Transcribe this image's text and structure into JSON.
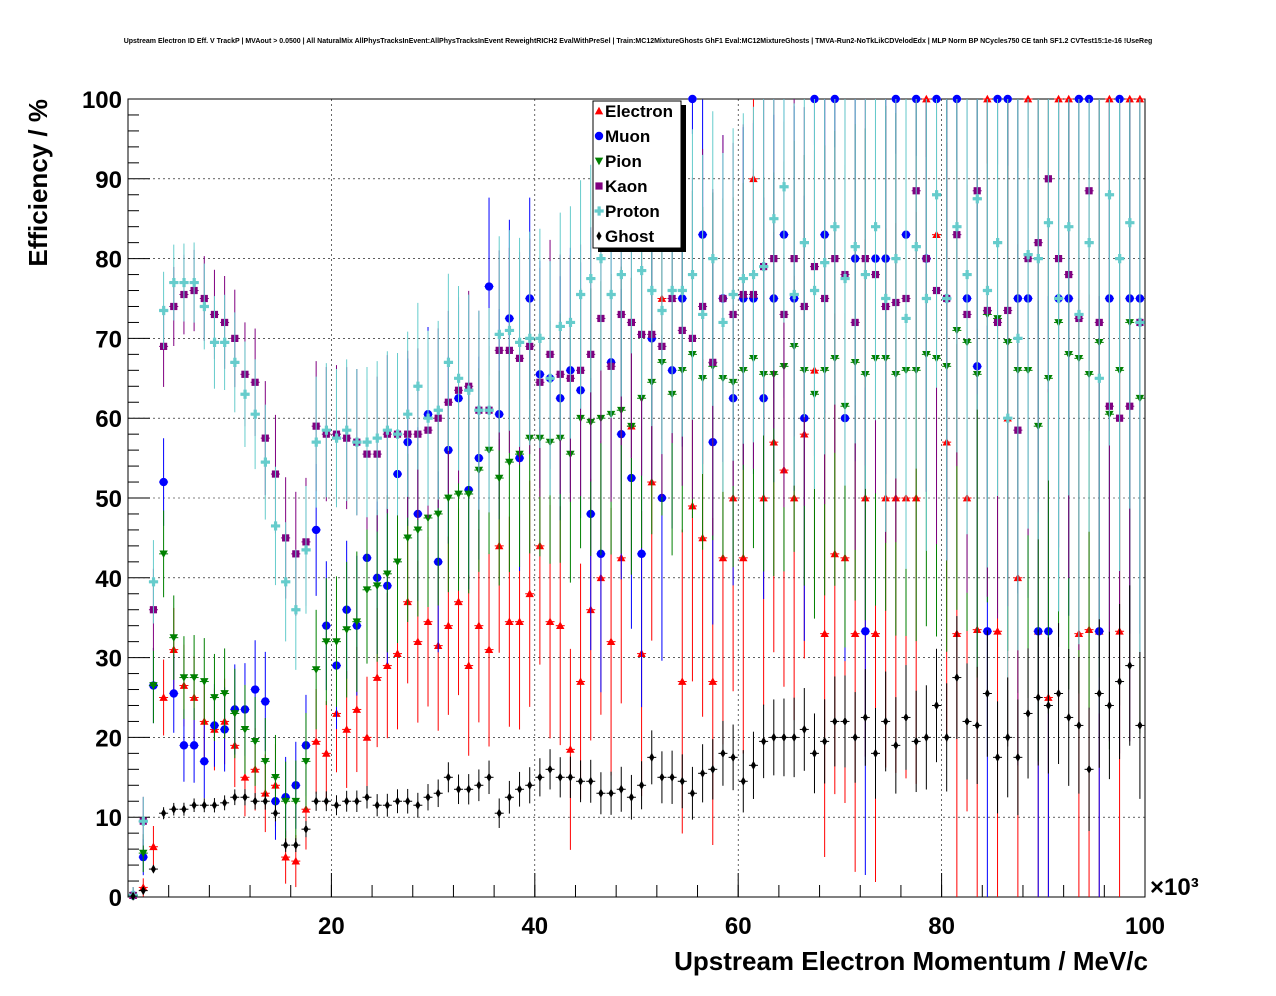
{
  "chart_data": {
    "type": "scatter",
    "title": "Upstream Electron ID Eff. V TrackP | MVAout > 0.0500 | All NaturalMix AllPhysTracksInEvent:AllPhysTracksInEvent ReweightRICH2 EvalWithPreSel | Train:MC12MixtureGhosts GhF1 Eval:MC12MixtureGhosts | TMVA-Run2-NoTkLikCDVelodEdx | MLP Norm BP NCycles750 CE tanh SF1.2 CVTest15:1e-16 !UseReg",
    "xlabel": "Upstream Electron Momentum / MeV/c",
    "ylabel": "Efficiency / %",
    "x_multiplier_label": "×10³",
    "xlim": [
      0,
      100
    ],
    "ylim": [
      0,
      100
    ],
    "x_ticks": [
      20,
      40,
      60,
      80,
      100
    ],
    "y_ticks": [
      0,
      10,
      20,
      30,
      40,
      50,
      60,
      70,
      80,
      90,
      100
    ],
    "grid": true,
    "legend_position": "top-center",
    "x": [
      0.5,
      1.5,
      2.5,
      3.5,
      4.5,
      5.5,
      6.5,
      7.5,
      8.5,
      9.5,
      10.5,
      11.5,
      12.5,
      13.5,
      14.5,
      15.5,
      16.5,
      17.5,
      18.5,
      19.5,
      20.5,
      21.5,
      22.5,
      23.5,
      24.5,
      25.5,
      26.5,
      27.5,
      28.5,
      29.5,
      30.5,
      31.5,
      32.5,
      33.5,
      34.5,
      35.5,
      36.5,
      37.5,
      38.5,
      39.5,
      40.5,
      41.5,
      42.5,
      43.5,
      44.5,
      45.5,
      46.5,
      47.5,
      48.5,
      49.5,
      50.5,
      51.5,
      52.5,
      53.5,
      54.5,
      55.5,
      56.5,
      57.5,
      58.5,
      59.5,
      60.5,
      61.5,
      62.5,
      63.5,
      64.5,
      65.5,
      66.5,
      67.5,
      68.5,
      69.5,
      70.5,
      71.5,
      72.5,
      73.5,
      74.5,
      75.5,
      76.5,
      77.5,
      78.5,
      79.5,
      80.5,
      81.5,
      82.5,
      83.5,
      84.5,
      85.5,
      86.5,
      87.5,
      88.5,
      89.5,
      90.5,
      91.5,
      92.5,
      93.5,
      94.5,
      95.5,
      96.5,
      97.5,
      98.5,
      99.5
    ],
    "series": [
      {
        "name": "Electron",
        "color": "#ff0000",
        "marker": "triangle-up",
        "values": [
          0.2,
          1.2,
          6.3,
          25.0,
          31.0,
          26.5,
          25.0,
          22.0,
          21.0,
          22.0,
          19.0,
          15.0,
          16.0,
          13.0,
          14.0,
          5.0,
          4.5,
          11.0,
          19.5,
          18.0,
          23.0,
          21.0,
          23.5,
          20.0,
          27.5,
          29.0,
          30.5,
          37.0,
          32.0,
          34.5,
          31.5,
          34.0,
          37.0,
          29.0,
          34.0,
          31.0,
          44.0,
          34.5,
          34.5,
          38.0,
          44.0,
          34.5,
          34.0,
          18.5,
          27.0,
          36.0,
          40.0,
          32.0,
          42.5,
          59.0,
          30.5,
          52.0,
          75.0,
          75.0,
          27.0,
          49.0,
          45.0,
          27.0,
          42.5,
          50.0,
          42.5,
          90.0,
          50.0,
          57.0,
          53.5,
          50.0,
          58.0,
          66.0,
          33.0,
          43.0,
          42.5,
          33.0,
          50.0,
          33.0,
          50.0,
          50.0,
          50.0,
          50.0,
          100.0,
          83.0,
          57.0,
          33.0,
          50.0,
          33.5,
          100.0,
          33.3,
          60.0,
          40.0,
          100.0,
          33.3,
          25.0,
          100.0,
          100.0,
          33.0,
          33.5,
          33.3,
          100.0,
          33.3,
          100.0,
          100.0
        ]
      },
      {
        "name": "Muon",
        "color": "#0000ff",
        "marker": "circle",
        "values": [
          0.2,
          5.0,
          26.5,
          52.0,
          25.5,
          19.0,
          19.0,
          17.0,
          21.5,
          21.0,
          23.5,
          23.5,
          26.0,
          24.5,
          12.0,
          12.5,
          14.0,
          19.0,
          46.0,
          34.0,
          29.0,
          36.0,
          34.0,
          42.5,
          40.0,
          39.0,
          53.0,
          57.0,
          48.0,
          60.5,
          42.0,
          56.0,
          62.5,
          51.0,
          55.0,
          76.5,
          60.5,
          72.5,
          55.0,
          75.0,
          65.5,
          65.0,
          62.5,
          66.0,
          63.5,
          48.0,
          43.0,
          67.0,
          58.0,
          52.5,
          43.0,
          70.0,
          50.0,
          66.0,
          75.0,
          100.0,
          83.0,
          57.0,
          75.0,
          62.5,
          75.0,
          75.0,
          62.5,
          75.0,
          83.0,
          75.0,
          60.0,
          100.0,
          83.0,
          100.0,
          60.0,
          80.0,
          33.3,
          80.0,
          80.0,
          100.0,
          83.0,
          100.0,
          80.0,
          100.0,
          75.0,
          100.0,
          75.0,
          66.5,
          33.3,
          100.0,
          100.0,
          75.0,
          75.0,
          33.3,
          33.3,
          75.0,
          75.0,
          100.0,
          100.0,
          33.3,
          75.0,
          100.0,
          75.0,
          75.0
        ]
      },
      {
        "name": "Pion",
        "color": "#008000",
        "marker": "triangle-down",
        "values": [
          0.2,
          5.5,
          26.5,
          43.0,
          32.5,
          27.5,
          27.5,
          27.0,
          25.0,
          25.5,
          23.0,
          21.0,
          19.5,
          17.0,
          15.0,
          12.0,
          12.0,
          17.0,
          28.5,
          32.0,
          32.0,
          33.5,
          34.5,
          38.5,
          39.0,
          40.5,
          42.0,
          45.0,
          46.0,
          47.5,
          48.0,
          50.0,
          50.5,
          50.5,
          53.5,
          56.0,
          52.5,
          54.5,
          55.5,
          57.5,
          57.5,
          57.0,
          57.5,
          55.5,
          60.0,
          59.5,
          60.0,
          60.5,
          61.0,
          59.0,
          62.5,
          64.5,
          67.0,
          63.0,
          66.0,
          68.0,
          65.0,
          66.5,
          65.0,
          64.5,
          66.0,
          67.5,
          65.5,
          65.5,
          66.5,
          69.0,
          66.0,
          63.0,
          66.0,
          67.5,
          61.5,
          67.0,
          65.5,
          67.5,
          67.5,
          65.5,
          66.0,
          66.0,
          68.0,
          67.5,
          66.5,
          71.0,
          69.5,
          65.5,
          73.0,
          72.5,
          69.5,
          66.0,
          66.0,
          59.0,
          65.0,
          72.0,
          68.0,
          67.5,
          65.5,
          69.5,
          60.5,
          66.0,
          72.0,
          62.5
        ]
      },
      {
        "name": "Kaon",
        "color": "#800080",
        "marker": "square",
        "values": [
          0.2,
          9.5,
          36.0,
          69.0,
          74.0,
          75.5,
          76.0,
          75.0,
          73.0,
          72.0,
          70.0,
          65.5,
          64.5,
          57.5,
          53.0,
          45.0,
          43.0,
          44.5,
          59.0,
          58.0,
          58.0,
          57.5,
          57.0,
          55.5,
          55.5,
          58.0,
          58.0,
          58.0,
          58.0,
          58.5,
          60.0,
          62.0,
          63.5,
          64.0,
          61.0,
          61.0,
          68.5,
          68.5,
          67.5,
          69.0,
          64.5,
          68.0,
          65.5,
          65.0,
          66.0,
          68.0,
          72.5,
          66.5,
          73.0,
          72.0,
          70.5,
          70.5,
          69.0,
          75.0,
          71.0,
          70.0,
          74.0,
          67.0,
          75.0,
          73.0,
          75.5,
          75.5,
          79.0,
          80.0,
          73.0,
          80.0,
          74.0,
          79.0,
          75.0,
          80.0,
          78.0,
          72.0,
          80.0,
          78.0,
          74.0,
          74.5,
          75.0,
          88.5,
          80.0,
          76.0,
          75.0,
          83.0,
          73.0,
          88.5,
          73.5,
          72.0,
          73.5,
          58.5,
          80.0,
          82.0,
          90.0,
          80.0,
          78.0,
          72.5,
          88.5,
          72.0,
          61.5,
          60.0,
          61.5,
          72.0
        ]
      },
      {
        "name": "Proton",
        "color": "#66cccc",
        "marker": "cross",
        "values": [
          0.2,
          9.5,
          39.5,
          73.5,
          77.0,
          77.0,
          77.0,
          74.0,
          69.5,
          69.5,
          67.0,
          63.0,
          60.5,
          54.5,
          46.5,
          39.5,
          36.0,
          43.5,
          57.0,
          58.5,
          57.5,
          58.5,
          57.0,
          57.0,
          57.5,
          58.5,
          58.0,
          60.5,
          64.0,
          60.0,
          61.0,
          67.0,
          65.0,
          63.5,
          61.0,
          61.0,
          70.5,
          71.0,
          69.5,
          70.0,
          70.0,
          65.0,
          71.5,
          72.0,
          75.5,
          77.5,
          80.0,
          75.5,
          78.0,
          82.5,
          78.5,
          76.0,
          73.5,
          76.0,
          76.0,
          78.0,
          73.0,
          80.0,
          72.0,
          75.5,
          77.5,
          78.0,
          79.0,
          85.0,
          89.0,
          75.5,
          82.0,
          76.0,
          79.5,
          84.0,
          77.5,
          81.5,
          78.0,
          84.0,
          75.0,
          80.0,
          72.5,
          81.5,
          75.0,
          88.0,
          75.0,
          84.0,
          78.0,
          87.5,
          76.0,
          82.0,
          60.0,
          70.0,
          80.5,
          80.0,
          84.5,
          75.0,
          84.0,
          73.0,
          82.0,
          65.0,
          88.0,
          80.0,
          84.5,
          72.0
        ]
      },
      {
        "name": "Ghost",
        "color": "#000000",
        "marker": "diamond",
        "values": [
          0.1,
          0.8,
          3.5,
          10.5,
          11.0,
          11.0,
          11.5,
          11.5,
          11.5,
          11.8,
          12.5,
          12.5,
          12.0,
          12.0,
          10.5,
          6.5,
          6.5,
          8.5,
          12.0,
          12.0,
          11.5,
          12.0,
          12.0,
          12.5,
          11.5,
          11.5,
          12.0,
          12.0,
          11.5,
          12.5,
          13.0,
          15.0,
          13.5,
          13.5,
          14.0,
          15.0,
          10.5,
          12.5,
          13.5,
          14.0,
          15.0,
          16.0,
          15.0,
          15.0,
          14.5,
          14.5,
          13.0,
          13.0,
          13.5,
          12.5,
          14.0,
          17.5,
          15.0,
          15.0,
          14.5,
          13.0,
          15.5,
          16.0,
          18.0,
          17.5,
          14.5,
          16.5,
          19.5,
          20.0,
          20.0,
          20.0,
          21.0,
          18.0,
          19.5,
          22.0,
          22.0,
          20.0,
          22.5,
          18.0,
          22.0,
          19.0,
          22.5,
          19.5,
          20.0,
          24.0,
          20.0,
          27.5,
          22.0,
          21.5,
          25.5,
          17.5,
          20.0,
          17.5,
          23.0,
          25.0,
          24.0,
          25.5,
          22.5,
          21.5,
          16.0,
          25.5,
          24.0,
          27.0,
          29.0,
          21.5
        ]
      }
    ]
  }
}
